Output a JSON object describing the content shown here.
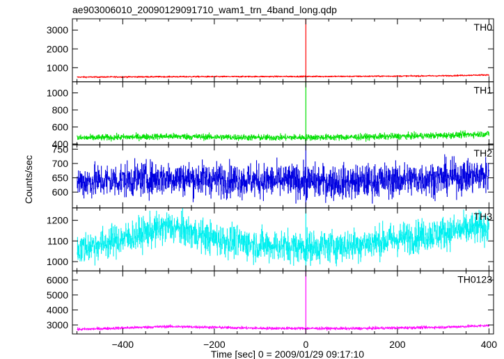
{
  "chart_data": {
    "type": "line",
    "title": "ae903006010_20090129091710_wam1_trn_4band_long.qdp",
    "xlabel": "Time [sec] 0 = 2009/01/29 09:17:10",
    "ylabel": "Counts/sec",
    "xlim": [
      -510,
      410
    ],
    "xticks": [
      -400,
      -200,
      0,
      200,
      400
    ],
    "trigger_time": 0,
    "panels": [
      {
        "name": "TH0",
        "color": "#ff0000",
        "ylim": [
          250,
          3600
        ],
        "yticks": [
          1000,
          2000,
          3000
        ],
        "baseline": {
          "x": [
            -500,
            -300,
            -100,
            100,
            300,
            400
          ],
          "y": [
            500,
            520,
            530,
            540,
            570,
            620
          ]
        },
        "noise": 18,
        "values_description_x": [
          -500,
          400
        ]
      },
      {
        "name": "TH1",
        "color": "#00e000",
        "ylim": [
          390,
          1130
        ],
        "yticks": [
          400,
          600,
          800,
          1000
        ],
        "baseline": {
          "x": [
            -500,
            -300,
            -100,
            100,
            300,
            400
          ],
          "y": [
            470,
            490,
            475,
            480,
            500,
            520
          ]
        },
        "noise": 18
      },
      {
        "name": "TH2",
        "color": "#0000e0",
        "ylim": [
          545,
          765
        ],
        "yticks": [
          600,
          650,
          700,
          750
        ],
        "baseline": {
          "x": [
            -500,
            -300,
            -100,
            100,
            300,
            400
          ],
          "y": [
            635,
            650,
            640,
            635,
            650,
            660
          ]
        },
        "noise": 30
      },
      {
        "name": "TH3",
        "color": "#00f0f0",
        "ylim": [
          955,
          1260
        ],
        "yticks": [
          1000,
          1100,
          1200
        ],
        "baseline": {
          "x": [
            -500,
            -400,
            -300,
            -200,
            -100,
            0,
            100,
            200,
            300,
            400
          ],
          "y": [
            1060,
            1110,
            1170,
            1110,
            1080,
            1070,
            1080,
            1110,
            1140,
            1170
          ]
        },
        "noise": 40
      },
      {
        "name": "TH0123",
        "color": "#ff00ff",
        "ylim": [
          2400,
          6600
        ],
        "yticks": [
          3000,
          4000,
          5000,
          6000
        ],
        "baseline": {
          "x": [
            -500,
            -300,
            -100,
            100,
            300,
            400
          ],
          "y": [
            2700,
            2900,
            2780,
            2760,
            2850,
            2960
          ]
        },
        "noise": 45
      }
    ]
  }
}
